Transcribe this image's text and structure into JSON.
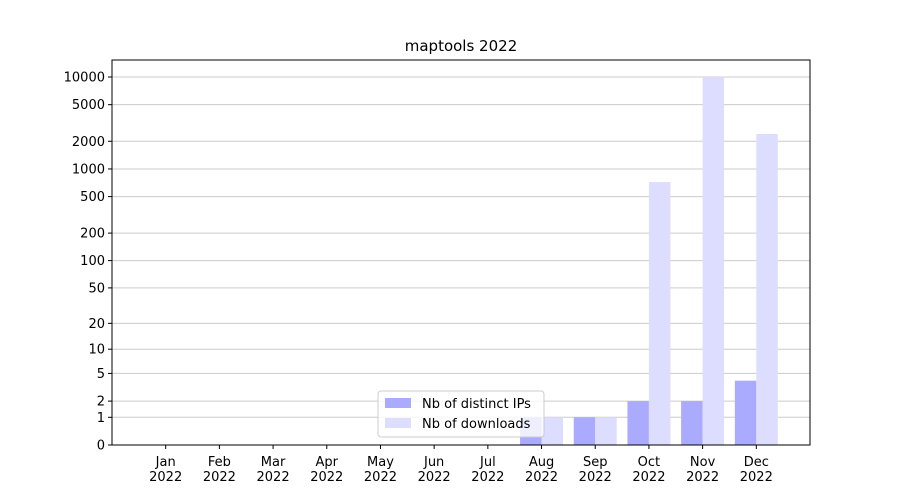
{
  "chart_data": {
    "type": "bar",
    "title": "maptools 2022",
    "categories": [
      "Jan 2022",
      "Feb 2022",
      "Mar 2022",
      "Apr 2022",
      "May 2022",
      "Jun 2022",
      "Jul 2022",
      "Aug 2022",
      "Sep 2022",
      "Oct 2022",
      "Nov 2022",
      "Dec 2022"
    ],
    "series": [
      {
        "name": "Nb of distinct IPs",
        "color": "#aaaaff",
        "values": [
          0,
          0,
          0,
          0,
          0,
          0,
          0,
          1,
          1,
          2,
          2,
          4
        ]
      },
      {
        "name": "Nb of downloads",
        "color": "#ddddff",
        "values": [
          0,
          0,
          0,
          0,
          0,
          0,
          0,
          1,
          1,
          720,
          10000,
          2400
        ]
      }
    ],
    "yscale": "log1p",
    "ylim": [
      0,
      15300
    ],
    "yticks": [
      0,
      1,
      2,
      5,
      10,
      20,
      50,
      100,
      200,
      500,
      1000,
      2000,
      5000,
      10000
    ],
    "grid": true,
    "legend": "lower center"
  }
}
